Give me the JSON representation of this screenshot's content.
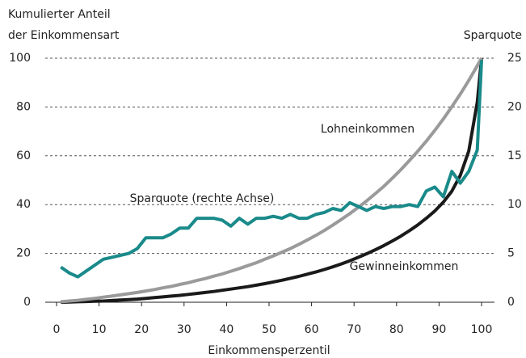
{
  "chart_data": {
    "type": "line",
    "ylabel": [
      "Kumulierter Anteil",
      "der Einkommensart"
    ],
    "y2label": "Sparquote",
    "xlabel": "Einkommensperzentil",
    "x": [
      1,
      3,
      5,
      7,
      9,
      11,
      13,
      15,
      17,
      19,
      21,
      23,
      25,
      27,
      29,
      31,
      33,
      35,
      37,
      39,
      41,
      43,
      45,
      47,
      49,
      51,
      53,
      55,
      57,
      59,
      61,
      63,
      65,
      67,
      69,
      71,
      73,
      75,
      77,
      79,
      81,
      83,
      85,
      87,
      89,
      91,
      93,
      95,
      97,
      99,
      100
    ],
    "series": [
      {
        "name": "Lohneinkommen",
        "color": "#9a9a9a",
        "values": [
          0.2,
          0.5,
          0.8,
          1.2,
          1.6,
          2.1,
          2.5,
          3.0,
          3.5,
          4.0,
          4.6,
          5.2,
          5.9,
          6.5,
          7.3,
          8.0,
          8.9,
          9.7,
          10.7,
          11.6,
          12.7,
          13.8,
          15.0,
          16.2,
          17.6,
          19.0,
          20.5,
          22.0,
          23.7,
          25.5,
          27.4,
          29.4,
          31.6,
          33.9,
          36.3,
          38.9,
          41.6,
          44.5,
          47.5,
          50.8,
          54.3,
          58.0,
          61.9,
          66.0,
          70.4,
          75.1,
          80.1,
          85.3,
          90.9,
          96.9,
          100
        ]
      },
      {
        "name": "Gewinneinkommen",
        "color": "#1a1a1a",
        "values": [
          0,
          0.1,
          0.2,
          0.3,
          0.4,
          0.5,
          0.7,
          0.9,
          1.1,
          1.3,
          1.6,
          1.9,
          2.2,
          2.5,
          2.8,
          3.2,
          3.6,
          4.0,
          4.4,
          4.9,
          5.4,
          5.9,
          6.4,
          7.0,
          7.6,
          8.3,
          9.0,
          9.8,
          10.6,
          11.5,
          12.4,
          13.4,
          14.5,
          15.7,
          17.0,
          18.4,
          19.9,
          21.5,
          23.2,
          25.1,
          27.1,
          29.3,
          31.7,
          34.4,
          37.4,
          41.0,
          45.5,
          52.0,
          62.0,
          82.0,
          100
        ]
      },
      {
        "name": "Sparquote (rechte Achse)",
        "color": "#1a8a8a",
        "axis": "y2",
        "values": [
          3.6,
          3.0,
          2.6,
          3.2,
          3.8,
          4.4,
          4.6,
          4.8,
          5.0,
          5.5,
          6.6,
          6.6,
          6.6,
          7.0,
          7.6,
          7.6,
          8.6,
          8.6,
          8.6,
          8.4,
          7.8,
          8.6,
          8.0,
          8.6,
          8.6,
          8.8,
          8.6,
          9.0,
          8.6,
          8.6,
          9.0,
          9.2,
          9.6,
          9.4,
          10.2,
          9.8,
          9.4,
          9.8,
          9.6,
          9.8,
          9.8,
          10.0,
          9.8,
          11.4,
          11.8,
          10.8,
          13.4,
          12.2,
          13.4,
          15.6,
          24.8
        ]
      }
    ],
    "xlim": [
      0,
      100
    ],
    "xticks": [
      0,
      10,
      20,
      30,
      40,
      50,
      60,
      70,
      80,
      90,
      100
    ],
    "ylim": [
      0,
      100
    ],
    "yticks": [
      0,
      20,
      40,
      60,
      80,
      100
    ],
    "y2lim": [
      0,
      25
    ],
    "y2ticks": [
      0,
      5,
      10,
      15,
      20,
      25
    ],
    "grid": true
  }
}
